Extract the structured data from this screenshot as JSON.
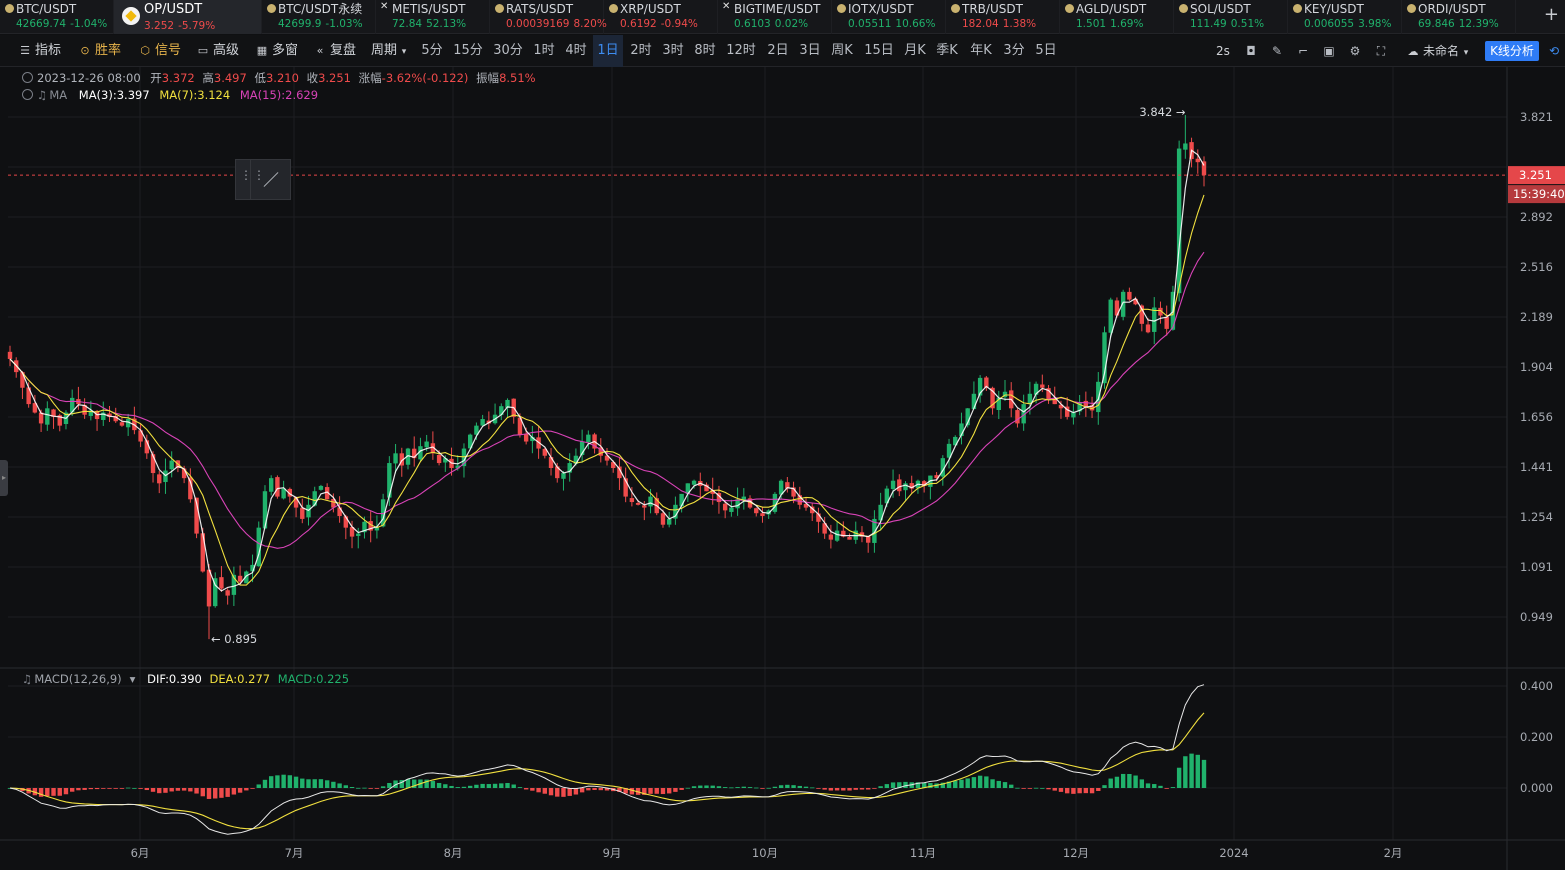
{
  "ticker": [
    {
      "symbol": "BTC/USDT",
      "price": "42669.74",
      "change": "-1.04%",
      "dir": "up"
    },
    {
      "symbol": "OP/USDT",
      "price": "3.252",
      "change": "-5.79%",
      "dir": "dn",
      "active": true
    },
    {
      "symbol": "BTC/USDT永续",
      "price": "42699.9",
      "change": "-1.03%",
      "dir": "up"
    },
    {
      "symbol": "METIS/USDT",
      "price": "72.84",
      "change": "52.13%",
      "dir": "up",
      "icon": "x"
    },
    {
      "symbol": "RATS/USDT",
      "price": "0.00039169",
      "change": "8.20%",
      "dir": "dn"
    },
    {
      "symbol": "XRP/USDT",
      "price": "0.6192",
      "change": "-0.94%",
      "dir": "dn"
    },
    {
      "symbol": "BIGTIME/USDT",
      "price": "0.6103",
      "change": "0.02%",
      "dir": "up",
      "icon": "x"
    },
    {
      "symbol": "IOTX/USDT",
      "price": "0.05511",
      "change": "10.66%",
      "dir": "up"
    },
    {
      "symbol": "TRB/USDT",
      "price": "182.04",
      "change": "1.38%",
      "dir": "dn"
    },
    {
      "symbol": "AGLD/USDT",
      "price": "1.501",
      "change": "1.69%",
      "dir": "up"
    },
    {
      "symbol": "SOL/USDT",
      "price": "111.49",
      "change": "0.51%",
      "dir": "up"
    },
    {
      "symbol": "KEY/USDT",
      "price": "0.006055",
      "change": "3.98%",
      "dir": "up"
    },
    {
      "symbol": "ORDI/USDT",
      "price": "69.846",
      "change": "12.39%",
      "dir": "up"
    }
  ],
  "ticker_add": "+",
  "toolbar": {
    "indicators": "指标",
    "winrate": "胜率",
    "signal": "信号",
    "advanced": "高级",
    "multiwin": "多窗",
    "replay": "复盘",
    "period": "周期",
    "intervals": [
      "5分",
      "15分",
      "30分",
      "1时",
      "4时",
      "1日",
      "2时",
      "3时",
      "8时",
      "12时",
      "2日",
      "3日",
      "周K",
      "15日",
      "月K",
      "季K",
      "年K",
      "3分",
      "5日"
    ],
    "selected_interval": "1日",
    "refresh": "2s",
    "layout_name": "未命名",
    "kline_analysis": "K线分析"
  },
  "ohlc": {
    "date": "2023-12-26 08:00",
    "open_label": "开",
    "open": "3.372",
    "high_label": "高",
    "high": "3.497",
    "low_label": "低",
    "low": "3.210",
    "close_label": "收",
    "close": "3.251",
    "change_label": "涨幅",
    "change": "-3.62%(-0.122)",
    "amp_label": "振幅",
    "amp": "8.51%"
  },
  "ma": {
    "label": "MA",
    "ma3": "MA(3):3.397",
    "ma7": "MA(7):3.124",
    "ma15": "MA(15):2.629"
  },
  "macd": {
    "label": "MACD(12,26,9)",
    "dif": "DIF:0.390",
    "dea": "DEA:0.277",
    "macd": "MACD:0.225"
  },
  "colors": {
    "up": "#20b26c",
    "down": "#ef4b4b",
    "ma3": "#ffffff",
    "ma7": "#f1e03f",
    "ma15": "#d843b7",
    "price_tag": "#e5474a"
  },
  "chart_data": {
    "type": "candlestick",
    "price_axis_ticks": [
      "3.821",
      "3.251",
      "2.892",
      "2.516",
      "2.189",
      "1.904",
      "1.656",
      "1.441",
      "1.254",
      "1.091",
      "0.949"
    ],
    "macd_axis_ticks": [
      "0.400",
      "0.200",
      "0.000"
    ],
    "time_ticks": [
      "6月",
      "7月",
      "8月",
      "9月",
      "10月",
      "11月",
      "12月",
      "2024",
      "2月"
    ],
    "high_marker": "3.842",
    "low_marker": "0.895",
    "last_price": "3.251",
    "countdown": "15:39:40",
    "log_scale": true,
    "close_series": [
      1.95,
      1.88,
      1.8,
      1.72,
      1.68,
      1.63,
      1.7,
      1.66,
      1.62,
      1.68,
      1.75,
      1.72,
      1.67,
      1.69,
      1.65,
      1.68,
      1.66,
      1.64,
      1.62,
      1.65,
      1.6,
      1.55,
      1.5,
      1.42,
      1.38,
      1.43,
      1.47,
      1.44,
      1.4,
      1.32,
      1.2,
      1.08,
      0.98,
      1.06,
      1.03,
      1.01,
      1.07,
      1.05,
      1.08,
      1.1,
      1.22,
      1.35,
      1.4,
      1.33,
      1.36,
      1.33,
      1.29,
      1.25,
      1.3,
      1.35,
      1.37,
      1.32,
      1.29,
      1.26,
      1.22,
      1.19,
      1.2,
      1.24,
      1.21,
      1.22,
      1.32,
      1.46,
      1.5,
      1.45,
      1.52,
      1.48,
      1.53,
      1.55,
      1.5,
      1.46,
      1.48,
      1.44,
      1.45,
      1.52,
      1.58,
      1.62,
      1.65,
      1.63,
      1.67,
      1.71,
      1.74,
      1.66,
      1.58,
      1.55,
      1.57,
      1.52,
      1.49,
      1.44,
      1.4,
      1.42,
      1.46,
      1.49,
      1.55,
      1.58,
      1.52,
      1.49,
      1.47,
      1.44,
      1.4,
      1.33,
      1.31,
      1.3,
      1.29,
      1.33,
      1.27,
      1.23,
      1.25,
      1.3,
      1.34,
      1.38,
      1.39,
      1.37,
      1.35,
      1.34,
      1.31,
      1.28,
      1.29,
      1.32,
      1.33,
      1.29,
      1.27,
      1.26,
      1.28,
      1.34,
      1.39,
      1.36,
      1.33,
      1.3,
      1.29,
      1.27,
      1.24,
      1.2,
      1.18,
      1.21,
      1.19,
      1.18,
      1.21,
      1.19,
      1.17,
      1.25,
      1.3,
      1.36,
      1.39,
      1.35,
      1.38,
      1.36,
      1.39,
      1.37,
      1.41,
      1.4,
      1.48,
      1.54,
      1.57,
      1.63,
      1.7,
      1.77,
      1.85,
      1.8,
      1.7,
      1.75,
      1.78,
      1.7,
      1.63,
      1.72,
      1.77,
      1.82,
      1.8,
      1.74,
      1.72,
      1.7,
      1.66,
      1.68,
      1.73,
      1.71,
      1.69,
      1.83,
      2.1,
      2.3,
      2.2,
      2.35,
      2.3,
      2.27,
      2.15,
      2.1,
      2.25,
      2.2,
      2.12,
      2.35,
      3.5,
      3.55,
      3.4,
      3.37,
      3.25
    ]
  }
}
